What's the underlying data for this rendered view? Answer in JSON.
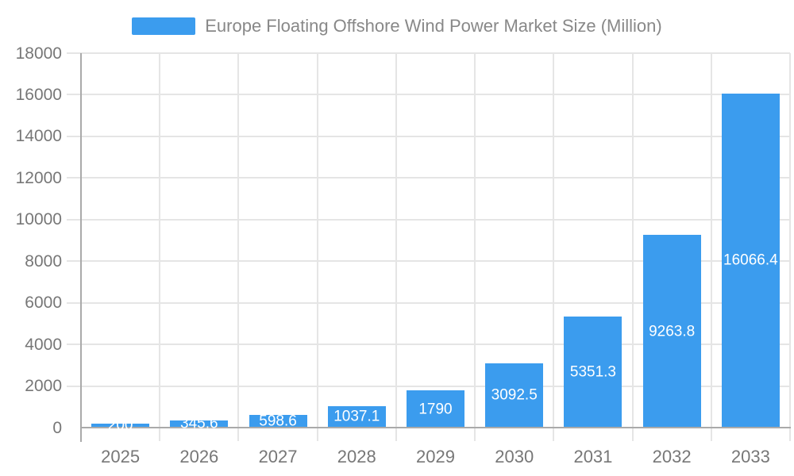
{
  "legend": {
    "label": "Europe Floating Offshore Wind Power Market Size (Million)"
  },
  "chart_data": {
    "type": "bar",
    "title": "Europe Floating Offshore Wind Power Market Size (Million)",
    "categories": [
      "2025",
      "2026",
      "2027",
      "2028",
      "2029",
      "2030",
      "2031",
      "2032",
      "2033"
    ],
    "series": [
      {
        "name": "Europe Floating Offshore Wind Power Market Size (Million)",
        "values": [
          200,
          345.6,
          598.6,
          1037.1,
          1790,
          3092.5,
          5351.3,
          9263.8,
          16066.4
        ],
        "value_labels": [
          "200",
          "345.6",
          "598.6",
          "1037.1",
          "1790",
          "3092.5",
          "5351.3",
          "9263.8",
          "16066.4"
        ]
      }
    ],
    "xlabel": "",
    "ylabel": "",
    "ylim": [
      0,
      18000
    ],
    "yticks": [
      0,
      2000,
      4000,
      6000,
      8000,
      10000,
      12000,
      14000,
      16000,
      18000
    ],
    "grid": true,
    "legend_position": "top",
    "value_label_position": "inside-center"
  },
  "colors": {
    "bar": "#3B9CEE",
    "axis_line": "#AAAAAA",
    "grid_line": "#E5E5E5",
    "axis_text": "#777777",
    "title_text": "#888888",
    "bar_label_text": "#FFFFFF"
  }
}
